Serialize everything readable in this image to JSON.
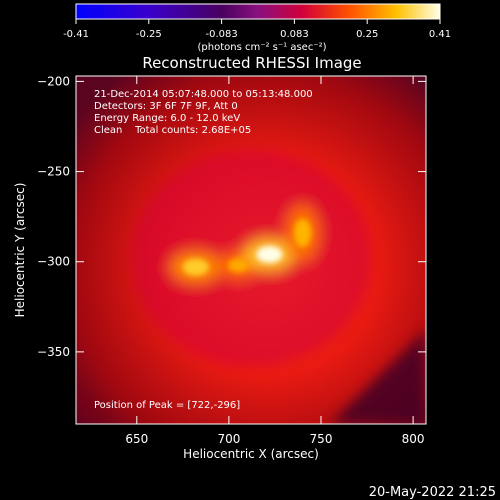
{
  "title": "Reconstructed RHESSI Image",
  "colorbar": {
    "ticks": [
      "-0.41",
      "-0.25",
      "-0.083",
      "0.083",
      "0.25",
      "0.41"
    ],
    "unit_label": "(photons cm⁻² s⁻¹ asec⁻²)"
  },
  "info": {
    "time_range": "21-Dec-2014 05:07:48.000 to 05:13:48.000",
    "detectors": "Detectors: 3F 6F 7F 9F, Att 0",
    "energy": "Energy Range: 6.0 - 12.0 keV",
    "clean": "Clean    Total counts: 2.68E+05",
    "peak": "Position of Peak = [722,-296]"
  },
  "footer_date": "20-May-2022 21:25",
  "chart_data": {
    "type": "heatmap",
    "title": "Reconstructed RHESSI Image",
    "xlabel": "Heliocentric X (arcsec)",
    "ylabel": "Heliocentric Y (arcsec)",
    "xticks": [
      650,
      700,
      750,
      800
    ],
    "yticks": [
      -200,
      -250,
      -300,
      -350
    ],
    "xlim": [
      617,
      807
    ],
    "ylim": [
      -390,
      -197
    ],
    "colorbar_range": [
      -0.41,
      0.41
    ],
    "colormap": "hot",
    "peak": [
      722,
      -296
    ],
    "sources": [
      {
        "x": 682,
        "y": -303,
        "sx": 9,
        "sy": 6,
        "value": 0.33
      },
      {
        "x": 705,
        "y": -302,
        "sx": 7,
        "sy": 5,
        "value": 0.29
      },
      {
        "x": 722,
        "y": -296,
        "sx": 9,
        "sy": 6,
        "value": 0.41
      },
      {
        "x": 740,
        "y": -284,
        "sx": 6,
        "sy": 10,
        "value": 0.3
      }
    ],
    "diffuse_background": {
      "x": 712,
      "y": -298,
      "sx": 65,
      "sy": 60,
      "value": 0.1
    }
  }
}
